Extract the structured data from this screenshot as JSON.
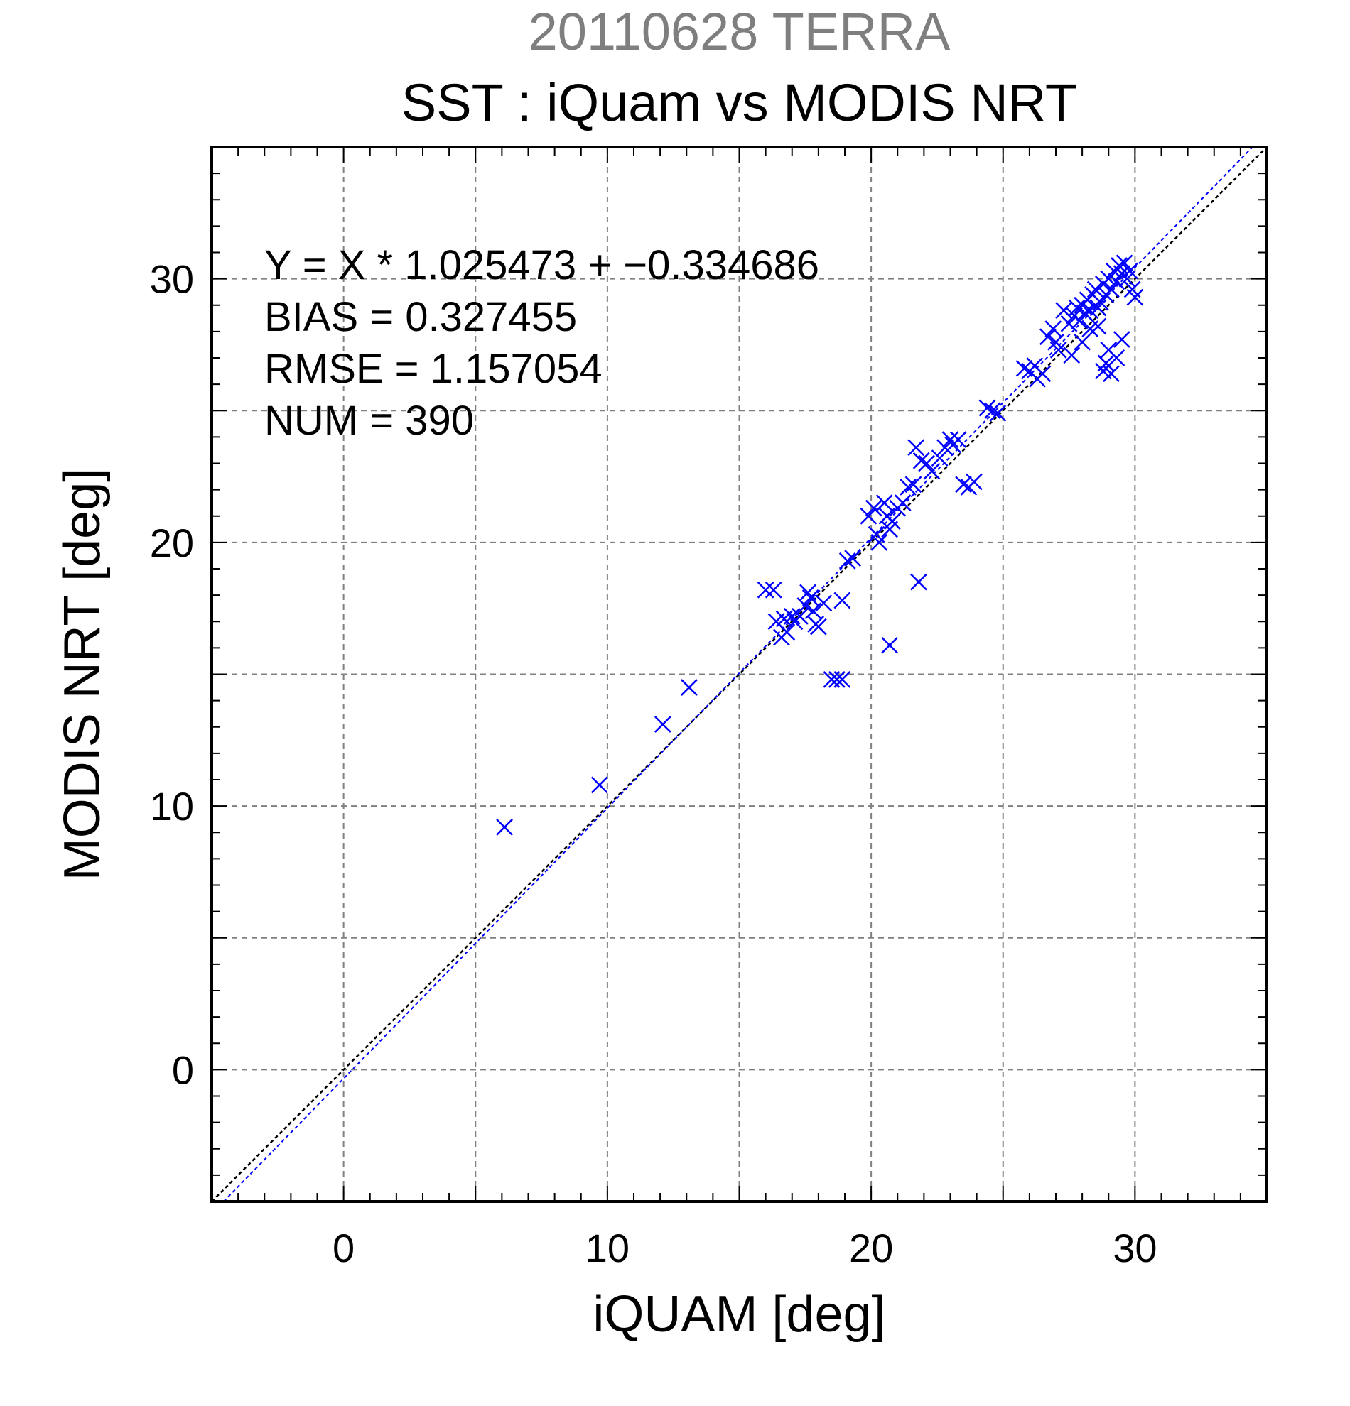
{
  "chart_data": {
    "type": "scatter",
    "suptitle": "20110628 TERRA",
    "title": "SST : iQuam vs MODIS NRT",
    "xlabel": "iQUAM [deg]",
    "ylabel": "MODIS NRT [deg]",
    "xlim": [
      -5,
      35
    ],
    "ylim": [
      -5,
      35
    ],
    "xticks": [
      0,
      10,
      20,
      30
    ],
    "yticks": [
      0,
      10,
      20,
      30
    ],
    "grid": true,
    "marker": "x",
    "colors": {
      "points": "#0000ff",
      "fit_line": "#0000ff",
      "identity_line": "#000000",
      "grid": "#808080",
      "suptitle": "#7f7f7f"
    },
    "annotations": [
      "Y = X * 1.025473 + −0.334686",
      "BIAS = 0.327455",
      "RMSE = 1.157054",
      "NUM = 390"
    ],
    "fit": {
      "slope": 1.025473,
      "intercept": -0.334686
    },
    "series": [
      {
        "x": [
          6.1,
          9.7,
          12.1,
          13.1,
          16.0,
          16.3,
          16.4,
          16.6,
          16.7,
          16.8,
          17.0,
          17.1,
          17.3,
          17.5,
          17.6,
          17.7,
          17.8,
          17.9,
          18.0,
          18.2,
          18.5,
          18.7,
          18.9,
          18.9,
          19.1,
          19.3,
          19.9,
          20.1,
          20.2,
          20.3,
          20.5,
          20.6,
          20.7,
          20.7,
          20.8,
          21.0,
          21.2,
          21.4,
          21.6,
          21.7,
          21.8,
          21.9,
          22.1,
          22.3,
          22.6,
          22.8,
          23.0,
          23.1,
          23.3,
          23.5,
          23.7,
          23.9,
          24.4,
          24.6,
          24.8,
          25.8,
          26.0,
          26.2,
          26.3,
          26.5,
          26.7,
          26.9,
          27.0,
          27.1,
          27.3,
          27.5,
          27.7,
          27.8,
          27.9,
          28.0,
          28.1,
          28.2,
          28.3,
          28.4,
          28.5,
          28.6,
          28.7,
          28.8,
          28.9,
          29.0,
          29.1,
          29.2,
          29.3,
          29.4,
          29.5,
          29.6,
          29.7,
          29.8,
          29.9,
          30.0,
          28.8,
          29.1,
          28.9,
          29.3,
          28.0,
          27.6,
          28.6,
          29.0,
          29.5,
          28.3
        ],
        "y": [
          9.2,
          10.8,
          13.1,
          14.5,
          18.2,
          18.2,
          17.0,
          16.4,
          17.1,
          16.6,
          17.2,
          17.0,
          17.2,
          17.6,
          18.1,
          17.9,
          17.4,
          16.9,
          16.8,
          17.7,
          14.8,
          14.8,
          14.8,
          17.8,
          19.3,
          19.4,
          21.0,
          21.3,
          20.3,
          20.0,
          21.5,
          21.0,
          16.1,
          20.5,
          20.8,
          21.3,
          21.5,
          22.1,
          22.2,
          23.6,
          18.5,
          23.1,
          23.0,
          22.7,
          23.2,
          23.6,
          23.9,
          23.7,
          23.9,
          22.2,
          22.1,
          22.3,
          25.1,
          25.0,
          24.9,
          26.6,
          26.5,
          26.7,
          26.2,
          26.4,
          27.8,
          28.1,
          27.6,
          27.3,
          28.8,
          28.3,
          28.6,
          28.9,
          28.4,
          29.0,
          28.7,
          29.2,
          28.8,
          29.4,
          29.6,
          28.9,
          29.1,
          29.8,
          29.4,
          30.0,
          29.6,
          30.3,
          29.9,
          30.5,
          30.2,
          30.6,
          30.0,
          30.3,
          29.6,
          29.3,
          26.5,
          26.4,
          26.8,
          27.0,
          27.6,
          27.1,
          28.2,
          27.3,
          27.7,
          28.1
        ]
      }
    ]
  }
}
